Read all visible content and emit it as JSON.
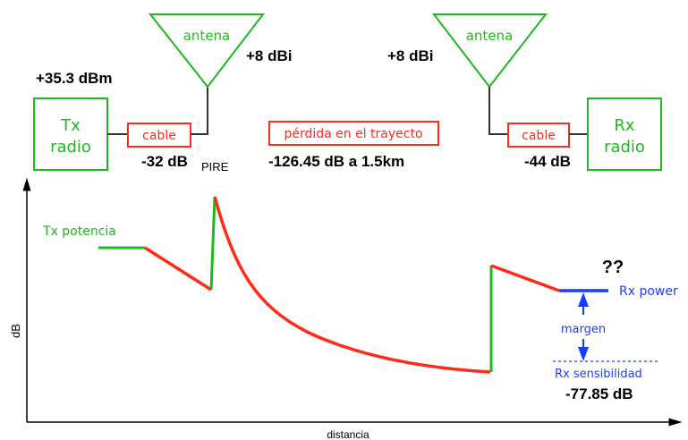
{
  "tx_power": "+35.3 dBm",
  "tx_radio": {
    "line1": "Tx",
    "line2": "radio"
  },
  "rx_radio": {
    "line1": "Rx",
    "line2": "radio"
  },
  "tx_cable": {
    "label": "cable",
    "loss": "-32 dB"
  },
  "rx_cable": {
    "label": "cable",
    "loss": "-44 dB"
  },
  "tx_antenna": {
    "label": "antena",
    "gain": "+8 dBi"
  },
  "rx_antenna": {
    "label": "antena",
    "gain": "+8 dBi"
  },
  "path_loss": {
    "label": "pérdida en el trayecto",
    "value": "-126.45 dB a  1.5km"
  },
  "pire": "PIRE",
  "graph": {
    "ylabel": "dB",
    "xlabel": "distancia",
    "tx_potencia": "Tx potencia",
    "unknown": "??",
    "rx_power": "Rx power",
    "margen": "margen",
    "rx_sensibilidad": "Rx sensibilidad",
    "sensitivity_value": "-77.85 dB"
  },
  "colors": {
    "green": "#1db91d",
    "red": "#ff2a1a",
    "blue": "#1a3cff",
    "black": "#000000"
  }
}
